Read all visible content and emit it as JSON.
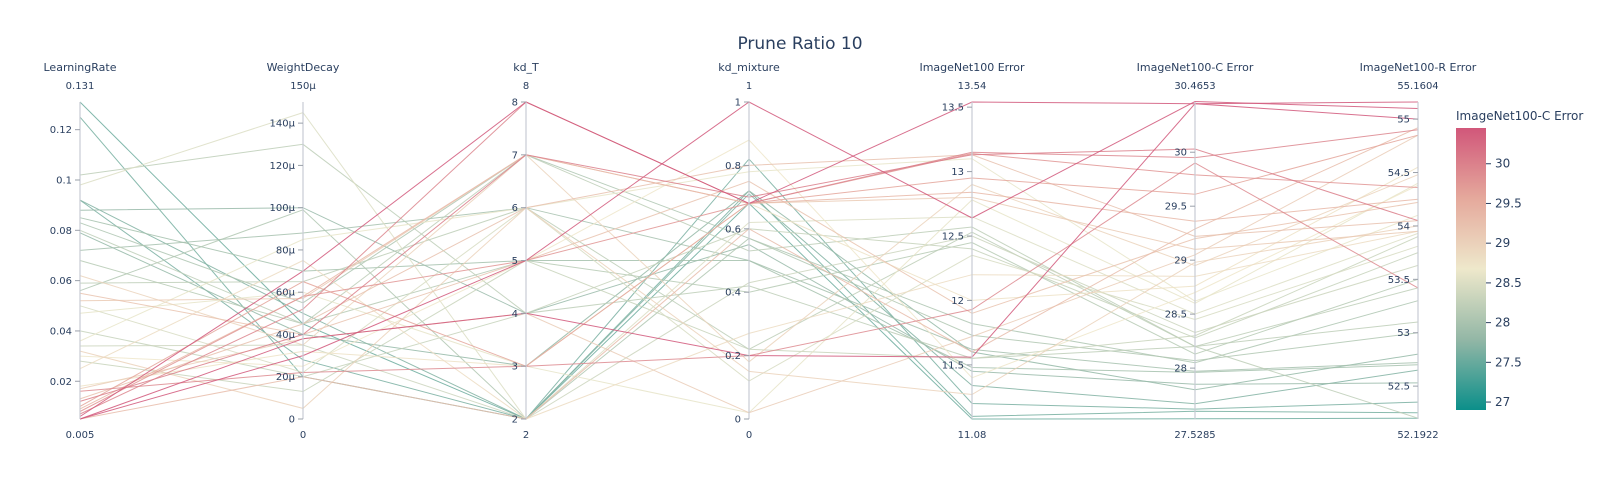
{
  "chart_data": {
    "type": "parallel_coordinates",
    "title": "Prune Ratio 10",
    "dimensions": [
      {
        "label": "LearningRate",
        "range": [
          0.005,
          0.131
        ],
        "min_text": "0.005",
        "max_text": "0.131",
        "ticks": [
          0.02,
          0.04,
          0.06,
          0.08,
          0.1,
          0.12
        ],
        "tick_labels": [
          "0.02",
          "0.04",
          "0.06",
          "0.08",
          "0.1",
          "0.12"
        ]
      },
      {
        "label": "WeightDecay",
        "range": [
          0,
          0.00015
        ],
        "min_text": "0",
        "max_text": "150µ",
        "ticks": [
          0,
          2e-05,
          4e-05,
          6e-05,
          8e-05,
          0.0001,
          0.00012,
          0.00014
        ],
        "tick_labels": [
          "0",
          "20µ",
          "40µ",
          "60µ",
          "80µ",
          "100µ",
          "120µ",
          "140µ"
        ]
      },
      {
        "label": "kd_T",
        "range": [
          2,
          8
        ],
        "min_text": "2",
        "max_text": "8",
        "ticks": [
          2,
          3,
          4,
          5,
          6,
          7,
          8
        ],
        "tick_labels": [
          "2",
          "3",
          "4",
          "5",
          "6",
          "7",
          "8"
        ]
      },
      {
        "label": "kd_mixture",
        "range": [
          0,
          1
        ],
        "min_text": "0",
        "max_text": "1",
        "ticks": [
          0,
          0.2,
          0.4,
          0.6,
          0.8,
          1
        ],
        "tick_labels": [
          "0",
          "0.2",
          "0.4",
          "0.6",
          "0.8",
          "1"
        ]
      },
      {
        "label": "ImageNet100 Error",
        "range": [
          11.08,
          13.54
        ],
        "min_text": "11.08",
        "max_text": "13.54",
        "ticks": [
          11.5,
          12,
          12.5,
          13,
          13.5
        ],
        "tick_labels": [
          "11.5",
          "12",
          "12.5",
          "13",
          "13.5"
        ]
      },
      {
        "label": "ImageNet100-C Error",
        "range": [
          27.5285,
          30.4653
        ],
        "min_text": "27.5285",
        "max_text": "30.4653",
        "ticks": [
          28,
          28.5,
          29,
          29.5,
          30
        ],
        "tick_labels": [
          "28",
          "28.5",
          "29",
          "29.5",
          "30"
        ]
      },
      {
        "label": "ImageNet100-R Error",
        "range": [
          52.1922,
          55.1604
        ],
        "min_text": "52.1922",
        "max_text": "55.1604",
        "ticks": [
          52.5,
          53,
          53.5,
          54,
          54.5,
          55
        ],
        "tick_labels": [
          "52.5",
          "53",
          "53.5",
          "54",
          "54.5",
          "55"
        ]
      }
    ],
    "rows": [
      [
        0.131,
        4.5e-05,
        2,
        0.68,
        11.08,
        27.53,
        52.2
      ],
      [
        0.125,
        2e-05,
        2,
        0.72,
        11.1,
        27.6,
        52.25
      ],
      [
        0.092,
        2.8e-05,
        2,
        0.82,
        11.2,
        27.62,
        52.35
      ],
      [
        0.092,
        5e-05,
        2,
        0.71,
        11.34,
        27.67,
        52.65
      ],
      [
        0.088,
        0.0001,
        4,
        0.55,
        11.45,
        27.85,
        52.53
      ],
      [
        0.085,
        7e-05,
        5,
        0.5,
        11.48,
        27.96,
        52.7
      ],
      [
        0.079,
        4e-05,
        3,
        0.72,
        11.6,
        27.8,
        52.8
      ],
      [
        0.072,
        8.8e-05,
        6,
        0.5,
        11.62,
        27.97,
        52.72
      ],
      [
        0.056,
        9.9e-05,
        2,
        0.57,
        11.73,
        28.07,
        53.0
      ],
      [
        0.083,
        5.5e-05,
        7,
        0.57,
        11.82,
        28.05,
        53.3
      ],
      [
        0.068,
        4.5e-05,
        5,
        0.4,
        12.45,
        28.13,
        53.5
      ],
      [
        0.059,
        6.5e-05,
        6,
        0.22,
        12.53,
        28.2,
        53.42
      ],
      [
        0.034,
        3.5e-05,
        2,
        0.43,
        12.5,
        28.33,
        53.63
      ],
      [
        0.04,
        2e-05,
        4,
        0.6,
        12.4,
        28.28,
        53.75
      ],
      [
        0.05,
        2.2e-05,
        6,
        0.12,
        12.35,
        28.45,
        53.81
      ],
      [
        0.08,
        4.5e-05,
        7,
        0.53,
        12.57,
        28.2,
        52.2
      ],
      [
        0.028,
        1.3e-05,
        5,
        0.22,
        11.55,
        28.3,
        53.9
      ],
      [
        0.102,
        0.00013,
        4,
        0.42,
        11.55,
        28.2,
        53.1
      ],
      [
        0.098,
        0.000145,
        2,
        0.62,
        12.65,
        28.5,
        53.93
      ],
      [
        0.047,
        6e-05,
        3,
        0.02,
        12.78,
        28.6,
        54.4
      ],
      [
        0.036,
        8.5e-05,
        6,
        0.78,
        13.1,
        28.62,
        54.1
      ],
      [
        0.025,
        7.5e-05,
        2,
        0.27,
        12.2,
        28.85,
        53.95
      ],
      [
        0.03,
        2.5e-05,
        5,
        0.88,
        11.4,
        28.7,
        54.38
      ],
      [
        0.062,
        3.5e-05,
        7,
        0.18,
        12.9,
        28.95,
        54.48
      ],
      [
        0.032,
        5e-06,
        6,
        0.15,
        11.27,
        28.98,
        54.0
      ],
      [
        0.052,
        5.7e-05,
        7,
        0.68,
        12.8,
        29.1,
        53.95
      ],
      [
        0.018,
        3.2e-05,
        3,
        0.68,
        12.0,
        28.76,
        54.55
      ],
      [
        0.017,
        3.8e-05,
        4,
        0.02,
        11.72,
        29.05,
        54.85
      ],
      [
        0.055,
        4e-05,
        5,
        0.75,
        11.9,
        29.2,
        54.22
      ],
      [
        0.013,
        4.5e-05,
        6,
        0.8,
        13.13,
        29.22,
        54.05
      ],
      [
        0.009,
        5.8e-05,
        7,
        0.68,
        12.84,
        29.36,
        54.25
      ],
      [
        0.005,
        2e-05,
        2,
        0.6,
        11.6,
        29.29,
        54.92
      ],
      [
        0.01,
        6.5e-05,
        3,
        0.68,
        12.95,
        29.61,
        54.85
      ],
      [
        0.008,
        5.8e-05,
        5,
        0.68,
        13.14,
        29.79,
        54.36
      ],
      [
        0.016,
        2.2e-05,
        3,
        0.2,
        11.93,
        29.9,
        53.42
      ],
      [
        0.012,
        4e-05,
        7,
        0.7,
        13.13,
        30.03,
        54.05
      ],
      [
        0.005,
        3.8e-05,
        4,
        0.2,
        11.56,
        30.45,
        55.0
      ],
      [
        0.005,
        3e-05,
        5,
        1.0,
        12.64,
        30.47,
        55.1
      ],
      [
        0.007,
        5.2e-05,
        8,
        0.68,
        13.15,
        29.95,
        54.9
      ],
      [
        0.006,
        7e-05,
        8,
        0.68,
        13.54,
        30.45,
        55.16
      ]
    ],
    "colorbar": {
      "title": "ImageNet100-C Error",
      "dimension": "ImageNet100-C Error",
      "range": [
        26.9,
        30.45
      ],
      "ticks": [
        27,
        27.5,
        28,
        28.5,
        29,
        29.5,
        30
      ],
      "tick_labels": [
        "27",
        "27.5",
        "28",
        "28.5",
        "29",
        "29.5",
        "30"
      ],
      "colors": [
        "#0b8f8a",
        "#93b7a6",
        "#eee8cb",
        "#e5a99c",
        "#d1577a"
      ]
    }
  }
}
